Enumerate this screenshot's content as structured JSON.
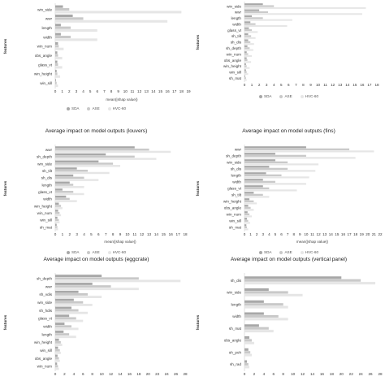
{
  "series_colors": [
    "#a8a8a8",
    "#c9c9c9",
    "#e6e6e6"
  ],
  "chart_data": [
    {
      "type": "bar",
      "orientation": "horizontal",
      "title": "",
      "ylabel": "features",
      "xlabel": "mean(|shap value|)",
      "xlim": [
        0,
        19
      ],
      "ticks": [
        0,
        1,
        2,
        3,
        4,
        5,
        6,
        7,
        8,
        9,
        10,
        11,
        12,
        13,
        14,
        15,
        16,
        17,
        18,
        19
      ],
      "legend": [
        "SDA",
        "ASE",
        "HVC-60"
      ],
      "categories": [
        "win_side",
        "wwr",
        "length",
        "width",
        "win_num",
        "obs_angle",
        "glass_vt",
        "win_height",
        "win_sill"
      ],
      "series": [
        {
          "name": "SDA",
          "values": [
            1.1,
            2.5,
            0.8,
            0.8,
            0.4,
            0.3,
            0.3,
            0.2,
            0.1
          ]
        },
        {
          "name": "ASE",
          "values": [
            2.0,
            4.0,
            2.2,
            2.2,
            0.5,
            0.4,
            0.4,
            0.3,
            0.2
          ]
        },
        {
          "name": "HVC-60",
          "values": [
            18.0,
            16.0,
            6.0,
            6.0,
            1.2,
            1.0,
            1.0,
            0.7,
            0.4
          ]
        }
      ]
    },
    {
      "type": "bar",
      "orientation": "horizontal",
      "title": "",
      "ylabel": "features",
      "xlabel": "",
      "xlim": [
        0,
        18
      ],
      "ticks": [
        0,
        1,
        2,
        3,
        4,
        5,
        6,
        7,
        8,
        9,
        10,
        11,
        12,
        13,
        14,
        15,
        16,
        17,
        18
      ],
      "legend": [
        "SDA",
        "ASE",
        "HVC-60"
      ],
      "categories": [
        "win_side",
        "wwr",
        "length",
        "width",
        "glass_vt",
        "sh_tilt",
        "sh_dis",
        "sh_depth",
        "win_num",
        "obs_angle",
        "win_height",
        "win_sill",
        "sh_mat"
      ],
      "series": [
        {
          "name": "SDA",
          "values": [
            2.5,
            2.0,
            1.0,
            0.8,
            0.6,
            0.5,
            0.5,
            0.4,
            0.3,
            0.3,
            0.2,
            0.2,
            0.1
          ]
        },
        {
          "name": "ASE",
          "values": [
            4.0,
            3.2,
            2.5,
            1.5,
            1.0,
            0.9,
            0.8,
            0.7,
            0.5,
            0.4,
            0.3,
            0.3,
            0.2
          ]
        },
        {
          "name": "HVC-60",
          "values": [
            16.5,
            16.0,
            6.5,
            5.8,
            1.8,
            1.5,
            1.3,
            1.2,
            1.0,
            0.9,
            0.7,
            0.5,
            0.3
          ]
        }
      ]
    },
    {
      "type": "bar",
      "orientation": "horizontal",
      "title": "Average impact on model outputs (louvers)",
      "ylabel": "features",
      "xlabel": "mean(|shap value|)",
      "xlim": [
        0,
        18
      ],
      "ticks": [
        0,
        1,
        2,
        3,
        4,
        5,
        6,
        7,
        8,
        9,
        10,
        11,
        12,
        13,
        14,
        15,
        16,
        17,
        18
      ],
      "legend": [
        "SDA",
        "ASE",
        "HVC-60"
      ],
      "categories": [
        "wwr",
        "sh_depth",
        "win_side",
        "sh_tilt",
        "sh_dis",
        "length",
        "glass_vt",
        "width",
        "win_height",
        "win_num",
        "win_sill",
        "sh_mat"
      ],
      "series": [
        {
          "name": "SDA",
          "values": [
            11.0,
            7.0,
            6.0,
            3.0,
            2.5,
            2.0,
            1.0,
            1.5,
            0.5,
            0.4,
            0.3,
            0.2
          ]
        },
        {
          "name": "ASE",
          "values": [
            13.0,
            11.0,
            8.0,
            4.5,
            4.0,
            2.5,
            2.5,
            2.0,
            0.8,
            0.6,
            0.5,
            0.3
          ]
        },
        {
          "name": "HVC-60",
          "values": [
            16.0,
            14.0,
            9.0,
            7.5,
            6.0,
            4.0,
            4.0,
            3.0,
            1.0,
            0.8,
            0.6,
            0.4
          ]
        }
      ]
    },
    {
      "type": "bar",
      "orientation": "horizontal",
      "title": "Average impact on model outputs (fins)",
      "ylabel": "features",
      "xlabel": "mean(|shap value|)",
      "xlim": [
        0,
        22
      ],
      "ticks": [
        0,
        1,
        2,
        3,
        4,
        5,
        6,
        7,
        8,
        9,
        10,
        11,
        12,
        13,
        14,
        15,
        16,
        17,
        18,
        19,
        20,
        21,
        22
      ],
      "legend": [
        "SDA",
        "ASE",
        "HVC-60"
      ],
      "categories": [
        "wwr",
        "sh_depth",
        "win_side",
        "sh_dis",
        "length",
        "width",
        "glass_vt",
        "sh_tilt",
        "win_height",
        "obs_angle",
        "win_num",
        "win_sill",
        "sh_mat"
      ],
      "series": [
        {
          "name": "SDA",
          "values": [
            10.0,
            5.0,
            5.0,
            4.0,
            3.5,
            3.0,
            3.0,
            1.5,
            0.8,
            0.6,
            0.5,
            0.4,
            0.3
          ]
        },
        {
          "name": "ASE",
          "values": [
            17.0,
            10.0,
            7.0,
            7.0,
            6.0,
            5.0,
            4.0,
            3.0,
            1.5,
            1.0,
            0.8,
            0.6,
            0.4
          ]
        },
        {
          "name": "HVC-60",
          "values": [
            21.0,
            18.0,
            12.0,
            11.5,
            10.5,
            10.0,
            8.5,
            4.0,
            2.0,
            1.5,
            1.2,
            0.9,
            0.6
          ]
        }
      ]
    },
    {
      "type": "bar",
      "orientation": "horizontal",
      "title": "Average impact on model outputs (eggcrate)",
      "ylabel": "features",
      "xlabel": "",
      "xlim": [
        0,
        28
      ],
      "ticks": [
        0,
        2,
        4,
        6,
        8,
        10,
        12,
        14,
        16,
        18,
        20,
        22,
        24,
        26,
        28
      ],
      "legend": [],
      "categories": [
        "sh_depth",
        "wwr",
        "sh_vdis",
        "win_side",
        "sh_hdis",
        "glass_vt",
        "width",
        "length",
        "win_height",
        "win_sill",
        "obs_angle",
        "win_num"
      ],
      "series": [
        {
          "name": "",
          "values": [
            10.0,
            8.0,
            5.0,
            4.0,
            3.5,
            3.0,
            2.0,
            1.8,
            0.8,
            0.6,
            0.5,
            0.4
          ]
        },
        {
          "name": "",
          "values": [
            18.0,
            12.0,
            7.0,
            6.0,
            5.0,
            4.5,
            3.5,
            3.0,
            1.2,
            1.0,
            0.8,
            0.6
          ]
        },
        {
          "name": "",
          "values": [
            27.0,
            18.0,
            10.0,
            8.0,
            7.0,
            6.0,
            5.0,
            4.5,
            1.5,
            1.2,
            1.0,
            0.8
          ]
        }
      ]
    },
    {
      "type": "bar",
      "orientation": "horizontal",
      "title": "Average impact on model outputs (vertical panel)",
      "ylabel": "features",
      "xlabel": "",
      "xlim": [
        0,
        28
      ],
      "ticks": [
        0,
        2,
        4,
        6,
        8,
        10,
        12,
        14,
        16,
        18,
        20,
        22,
        24,
        26,
        28
      ],
      "legend": [],
      "categories": [
        "sh_dis",
        "win_side",
        "length",
        "width",
        "sh_mat",
        "obs_angle",
        "sh_poh",
        "sh_rad"
      ],
      "series": [
        {
          "name": "",
          "values": [
            20.0,
            5.0,
            4.0,
            4.0,
            3.0,
            1.0,
            0.8,
            0.5
          ]
        },
        {
          "name": "",
          "values": [
            24.0,
            9.0,
            8.0,
            7.0,
            5.0,
            1.5,
            1.2,
            0.8
          ]
        },
        {
          "name": "",
          "values": [
            27.0,
            12.0,
            9.0,
            9.0,
            6.0,
            2.0,
            1.5,
            1.0
          ]
        }
      ]
    }
  ]
}
